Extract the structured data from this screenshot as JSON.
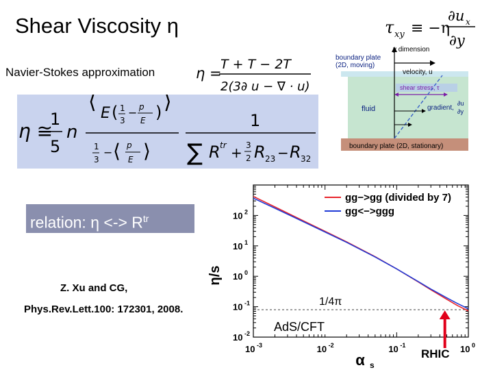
{
  "slide": {
    "title": "Shear Viscosity η",
    "ns_label": "Navier-Stokes approximation",
    "relation_text": "relation: η <-> R",
    "relation_sup": "tr",
    "citation_line1": "Z. Xu and CG,",
    "citation_line2": "Phys.Rev.Lett.100: 172301, 2008."
  },
  "formulas": {
    "tau_lhs": "τ",
    "tau_sub": "xy",
    "tau_eq": "≡ −η",
    "tau_num": "∂u",
    "tau_num_sub": "x",
    "tau_den": "∂y",
    "ns_eta": "η =",
    "ns_num": "T + T − 2T",
    "ns_den": "2(3∂ u − ∇ · u)",
    "eta_lhs": "η ≅",
    "eta_frac_num": "1",
    "eta_frac_den": "5",
    "eta_n": "n",
    "eta_E": "E",
    "eta_onethird": "1",
    "eta_three": "3",
    "eta_pz2": "p",
    "eta_E2": "E",
    "eta_one": "1",
    "eta_R_tr": "R",
    "eta_tr": "tr",
    "eta_R23": "R",
    "eta_R32": "R",
    "eta_sub23": "23",
    "eta_sub32": "32",
    "eta_sum": "∑",
    "eta_3over2": "3",
    "eta_2": "2"
  },
  "couette": {
    "y_dimension": "y dimension",
    "top_plate": "boundary plate",
    "top_plate_2": "(2D, moving)",
    "velocity": "velocity, u",
    "shear_stress": "shear stress, τ",
    "fluid": "fluid",
    "gradient": "gradient,",
    "gradient_num": "∂u",
    "gradient_den": "∂y",
    "bottom_plate": "boundary plate (2D, stationary)"
  },
  "chart_data": {
    "type": "line",
    "title": "",
    "xlabel": "α",
    "xlabel_sub": "s",
    "ylabel": "η/s",
    "xscale": "log",
    "yscale": "log",
    "xlim": [
      0.001,
      1
    ],
    "ylim": [
      0.01,
      1000
    ],
    "x_ticks": [
      0.001,
      0.01,
      0.1,
      1
    ],
    "x_tick_labels": [
      "10",
      "10",
      "10",
      "10"
    ],
    "x_tick_exps": [
      "-3",
      "-2",
      "-1",
      "0"
    ],
    "y_ticks": [
      0.01,
      0.1,
      1,
      10,
      100
    ],
    "y_tick_labels": [
      "10",
      "10",
      "10",
      "10",
      "10"
    ],
    "y_tick_exps": [
      "-2",
      "-1",
      "0",
      "1",
      "2"
    ],
    "legend_position": "top-right",
    "series": [
      {
        "name": "gg−>gg (divided by 7)",
        "color": "#e8222a",
        "x": [
          0.001,
          0.002,
          0.005,
          0.01,
          0.02,
          0.05,
          0.1,
          0.2,
          0.3,
          0.5,
          0.7,
          1.0
        ],
        "y": [
          420,
          190,
          66,
          30,
          13.5,
          4.4,
          1.75,
          0.65,
          0.36,
          0.175,
          0.11,
          0.072
        ]
      },
      {
        "name": "gg<−>ggg",
        "color": "#1f3ad6",
        "x": [
          0.001,
          0.002,
          0.005,
          0.01,
          0.02,
          0.05,
          0.1,
          0.2,
          0.3,
          0.5,
          0.7,
          1.0
        ],
        "y": [
          370,
          172,
          62,
          28.5,
          13,
          4.3,
          1.75,
          0.67,
          0.38,
          0.195,
          0.128,
          0.085
        ]
      }
    ],
    "annotations": {
      "quarter_pi": "1/4π",
      "ads_cft": "AdS/CFT",
      "rhic": "RHIC",
      "bound_value": 0.0796,
      "rhic_alpha": 0.47
    }
  },
  "colors": {
    "eta_box": "#c9d3ee",
    "relation_box": "#8a8fae",
    "fluid": "#c6e5d0",
    "plate": "#cce7ef",
    "bottom_plate": "#c58f7a",
    "arrow": "#e1001a"
  }
}
